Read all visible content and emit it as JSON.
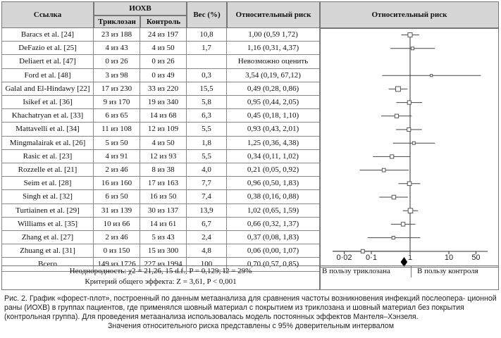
{
  "headers": {
    "study": "Ссылка",
    "ssi": "ИОХВ",
    "triclosan": "Триклозан",
    "control": "Контроль",
    "weight": "Вес (%)",
    "rr": "Относительный риск",
    "plot": "Относительный риск"
  },
  "rows": [
    {
      "study": "Baracs et al. [24]",
      "triclosan": "23 из 188",
      "control": "24 из 197",
      "weight": "10,8",
      "rr": "1,00 (0,59 1,72)"
    },
    {
      "study": "DeFazio et al. [25]",
      "triclosan": "4 из 43",
      "control": "4 из 50",
      "weight": "1,7",
      "rr": "1,16 (0,31, 4,37)"
    },
    {
      "study": "Deliaert et al. [47]",
      "triclosan": "0 из 26",
      "control": "0 из 26",
      "weight": "",
      "rr": "Невозможно оценить"
    },
    {
      "study": "Ford et al. [48]",
      "triclosan": "3 из 98",
      "control": "0 из 49",
      "weight": "0,3",
      "rr": "3,54 (0,19, 67,12)"
    },
    {
      "study": "Galal and El-Hindawy [22]",
      "triclosan": "17 из 230",
      "control": "33 из 220",
      "weight": "15,5",
      "rr": "0,49 (0,28, 0,86)"
    },
    {
      "study": "Isikef et al. [36]",
      "triclosan": "9 из 170",
      "control": "19 из 340",
      "weight": "5,8",
      "rr": "0,95 (0,44, 2,05)"
    },
    {
      "study": "Khachatryan et al. [33]",
      "triclosan": "6 из 65",
      "control": "14 из 68",
      "weight": "6,3",
      "rr": "0,45 (0,18, 1,10)"
    },
    {
      "study": "Mattavelli et al. [34]",
      "triclosan": "11 из 108",
      "control": "12 из 109",
      "weight": "5,5",
      "rr": "0,93 (0,43, 2,01)"
    },
    {
      "study": "Mingmalairak et al. [26]",
      "triclosan": "5 из 50",
      "control": "4 из 50",
      "weight": "1,8",
      "rr": "1,25 (0,36, 4,38)"
    },
    {
      "study": "Rasic et al. [23]",
      "triclosan": "4 из 91",
      "control": "12 из 93",
      "weight": "5,5",
      "rr": "0,34 (0,11, 1,02)"
    },
    {
      "study": "Rozzelle et al. [21]",
      "triclosan": "2 из 46",
      "control": "8 из 38",
      "weight": "4,0",
      "rr": "0,21 (0,05, 0,92)"
    },
    {
      "study": "Seim et al. [28]",
      "triclosan": "16 из 160",
      "control": "17 из 163",
      "weight": "7,7",
      "rr": "0,96 (0,50, 1,83)"
    },
    {
      "study": "Singh et al. [32]",
      "triclosan": "6 из 50",
      "control": "16 из 50",
      "weight": "7,4",
      "rr": "0,38 (0,16, 0,88)"
    },
    {
      "study": "Turtiainen et al. [29]",
      "triclosan": "31 из 139",
      "control": "30 из 137",
      "weight": "13,9",
      "rr": "1,02 (0,65, 1,59)"
    },
    {
      "study": "Williams et al. [35]",
      "triclosan": "10 из 66",
      "control": "14 из 61",
      "weight": "6,7",
      "rr": "0,66 (0,32, 1,37)"
    },
    {
      "study": "Zhang et al. [27]",
      "triclosan": "2 из 46",
      "control": "5 из 43",
      "weight": "2,4",
      "rr": "0,37 (0,08, 1,83)"
    },
    {
      "study": "Zhuang et al. [31]",
      "triclosan": "0 из 150",
      "control": "15 из 300",
      "weight": "4,8",
      "rr": "0,06 (0,00, 1,07)"
    },
    {
      "study": "Всего",
      "triclosan": "149 из 1726",
      "control": "227 из 1994",
      "weight": "100",
      "rr": "0,70 (0,57, 0,85)"
    }
  ],
  "footer": {
    "heterogeneity": "Неоднородность: χ2 = 21,26, 15 d.f., P = 0,129; I2 = 29%",
    "effect": "Критерий общего эффекта: Z = 3,61, P < 0,001",
    "favours_triclosan": "В пользу триклозана",
    "favours_control": "В пользу контроля"
  },
  "caption": {
    "line1": "Рис. 2. График «форест-плот», построенный по данным метаанализа для сравнения частоты возникновения инфекций послеопера- ционной раны (ИОХВ) в группах пациентов, где применялся шовный материал с покрытием из триклозана и шовный материал без покрытия (контрольная группа). Для проведения метаанализа использовалась модель постоянных эффектов Мантеля–Хэнзеля.",
    "line2": "Значения относительного риска представлены с 95% доверительным интервалом"
  },
  "chart_data": {
    "type": "forest",
    "title": "Относительный риск",
    "x_scale": "log",
    "xlim": [
      0.01,
      100
    ],
    "ticks": [
      0.02,
      0.1,
      1,
      10,
      50
    ],
    "tick_labels": [
      "0·02",
      "0·1",
      "1",
      "10",
      "50"
    ],
    "reference_line": 1,
    "marker_colors": {
      "study": "#555555",
      "summary": "#000000"
    },
    "studies": [
      {
        "rr": 1.0,
        "lo": 0.59,
        "hi": 1.72,
        "weight": 10.8
      },
      {
        "rr": 1.16,
        "lo": 0.31,
        "hi": 4.37,
        "weight": 1.7
      },
      null,
      {
        "rr": 3.54,
        "lo": 0.19,
        "hi": 67.12,
        "weight": 0.3
      },
      {
        "rr": 0.49,
        "lo": 0.28,
        "hi": 0.86,
        "weight": 15.5
      },
      {
        "rr": 0.95,
        "lo": 0.44,
        "hi": 2.05,
        "weight": 5.8
      },
      {
        "rr": 0.45,
        "lo": 0.18,
        "hi": 1.1,
        "weight": 6.3
      },
      {
        "rr": 0.93,
        "lo": 0.43,
        "hi": 2.01,
        "weight": 5.5
      },
      {
        "rr": 1.25,
        "lo": 0.36,
        "hi": 4.38,
        "weight": 1.8
      },
      {
        "rr": 0.34,
        "lo": 0.11,
        "hi": 1.02,
        "weight": 5.5
      },
      {
        "rr": 0.21,
        "lo": 0.05,
        "hi": 0.92,
        "weight": 4.0
      },
      {
        "rr": 0.96,
        "lo": 0.5,
        "hi": 1.83,
        "weight": 7.7
      },
      {
        "rr": 0.38,
        "lo": 0.16,
        "hi": 0.88,
        "weight": 7.4
      },
      {
        "rr": 1.02,
        "lo": 0.65,
        "hi": 1.59,
        "weight": 13.9
      },
      {
        "rr": 0.66,
        "lo": 0.32,
        "hi": 1.37,
        "weight": 6.7
      },
      {
        "rr": 0.37,
        "lo": 0.08,
        "hi": 1.83,
        "weight": 2.4
      },
      {
        "rr": 0.06,
        "lo": 0.0,
        "hi": 1.07,
        "weight": 4.8
      }
    ],
    "summary": {
      "rr": 0.7,
      "lo": 0.57,
      "hi": 0.85
    }
  }
}
